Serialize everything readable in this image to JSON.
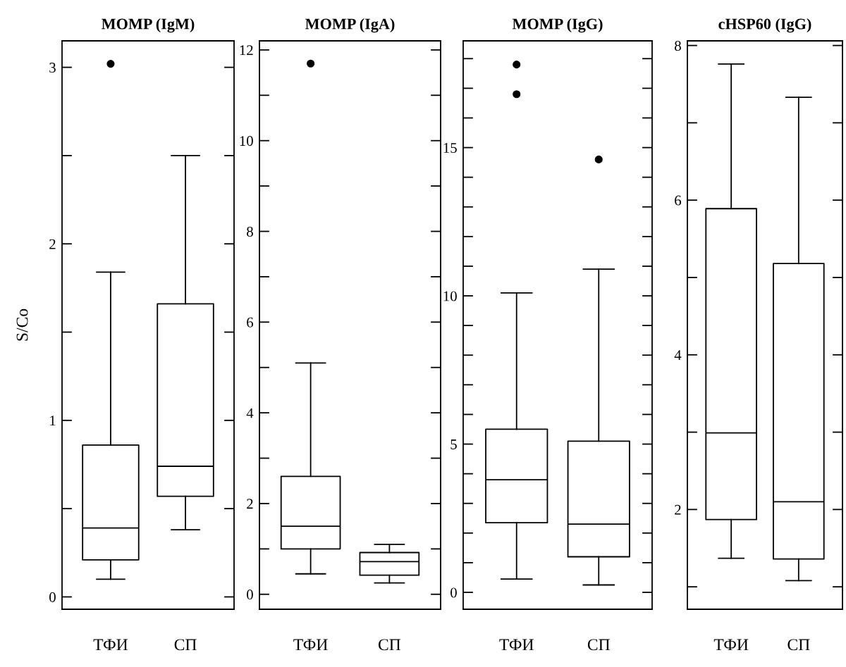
{
  "chart_data": [
    {
      "type": "box",
      "title": "MOMP (IgM)",
      "ylabel": "S/Co",
      "categories": [
        "ТФИ",
        "СП"
      ],
      "boxes": [
        {
          "low": 0.1,
          "q1": 0.21,
          "median": 0.39,
          "q3": 0.86,
          "high": 1.84,
          "outliers": [
            3.02
          ]
        },
        {
          "low": 0.38,
          "q1": 0.57,
          "median": 0.74,
          "q3": 1.66,
          "high": 2.5
        }
      ],
      "ylim": [
        -0.07,
        3.15
      ],
      "yticks": [
        0,
        {
          "value": 0.5,
          "label": null
        },
        1,
        {
          "value": 1.5,
          "label": null
        },
        2,
        {
          "value": 2.5,
          "label": null
        },
        3
      ],
      "grid": false
    },
    {
      "type": "box",
      "title": "MOMP (IgA)",
      "categories": [
        "ТФИ",
        "СП"
      ],
      "boxes": [
        {
          "low": 0.45,
          "q1": 1.0,
          "median": 1.5,
          "q3": 2.6,
          "high": 5.1,
          "outliers": [
            11.7
          ]
        },
        {
          "low": 0.25,
          "q1": 0.42,
          "median": 0.72,
          "q3": 0.92,
          "high": 1.1
        }
      ],
      "ylim": [
        -0.33,
        12.2
      ],
      "yticks": [
        0,
        {
          "value": 1,
          "label": null
        },
        2,
        {
          "value": 3,
          "label": null
        },
        4,
        {
          "value": 5,
          "label": null
        },
        6,
        {
          "value": 7,
          "label": null
        },
        8,
        {
          "value": 9,
          "label": null
        },
        10,
        {
          "value": 11,
          "label": null
        },
        12
      ],
      "grid": false
    },
    {
      "type": "box",
      "title": "MOMP (IgG)",
      "categories": [
        "ТФИ",
        "СП"
      ],
      "boxes": [
        {
          "low": 0.45,
          "q1": 2.35,
          "median": 3.8,
          "q3": 5.5,
          "high": 10.1,
          "outliers": [
            17.8,
            16.8
          ]
        },
        {
          "low": 0.25,
          "q1": 1.2,
          "median": 2.3,
          "q3": 5.1,
          "high": 10.9,
          "outliers": [
            14.6
          ]
        }
      ],
      "ylim": [
        -0.57,
        18.6
      ],
      "yticks": [
        0,
        {
          "value": 1,
          "label": null
        },
        {
          "value": 2,
          "label": null
        },
        {
          "value": 3,
          "label": null
        },
        {
          "value": 4,
          "label": null
        },
        5,
        {
          "value": 6,
          "label": null
        },
        {
          "value": 7,
          "label": null
        },
        {
          "value": 8,
          "label": null
        },
        {
          "value": 9,
          "label": null
        },
        10,
        {
          "value": 11,
          "label": null
        },
        {
          "value": 12,
          "label": null
        },
        {
          "value": 13,
          "label": null
        },
        {
          "value": 14,
          "label": null
        },
        15,
        {
          "value": 16,
          "label": null
        },
        {
          "value": 17,
          "label": null
        },
        {
          "value": 18,
          "label": null
        }
      ],
      "grid": false
    },
    {
      "type": "box",
      "title": "cHSP60 (IgG)",
      "categories": [
        "ТФИ",
        "СП"
      ],
      "boxes": [
        {
          "low": 1.37,
          "q1": 1.87,
          "median": 2.99,
          "q3": 5.89,
          "high": 7.76
        },
        {
          "low": 1.08,
          "q1": 1.36,
          "median": 2.1,
          "q3": 5.18,
          "high": 7.33
        }
      ],
      "ylim": [
        0.71,
        8.06
      ],
      "yticks": [
        {
          "value": 1,
          "label": null
        },
        2,
        {
          "value": 3,
          "label": null
        },
        4,
        {
          "value": 5,
          "label": null
        },
        6,
        {
          "value": 7,
          "label": null
        },
        8
      ],
      "grid": false
    }
  ]
}
